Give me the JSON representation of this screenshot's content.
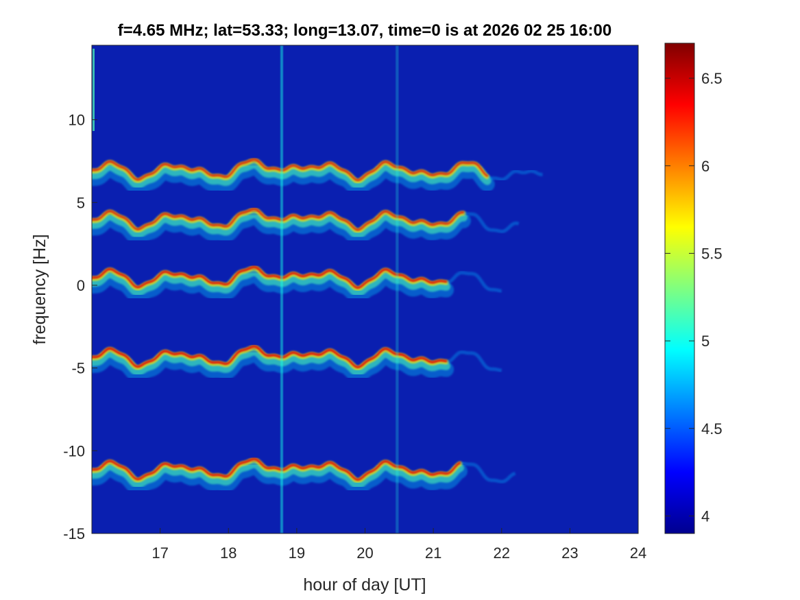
{
  "chart_data": {
    "type": "heatmap",
    "title": "f=4.65 MHz;  lat=53.33; long=13.07, time=0 is at 2026 02 25 16:00",
    "xlabel": "hour of day [UT]",
    "ylabel": "frequency [Hz]",
    "xlim": [
      16,
      24
    ],
    "ylim": [
      -15,
      14.5
    ],
    "x_ticks": [
      17,
      18,
      19,
      20,
      21,
      22,
      23,
      24
    ],
    "x_tick_labels": [
      "17",
      "18",
      "19",
      "20",
      "21",
      "22",
      "23",
      "24"
    ],
    "y_ticks": [
      -15,
      -10,
      -5,
      0,
      5,
      10
    ],
    "y_tick_labels": [
      "-15",
      "-10",
      "-5",
      "0",
      "5",
      "10"
    ],
    "colorbar": {
      "range": [
        3.9,
        6.7
      ],
      "ticks": [
        4,
        4.5,
        5,
        5.5,
        6,
        6.5
      ],
      "tick_labels": [
        "4",
        "4.5",
        "5",
        "5.5",
        "6",
        "6.5"
      ],
      "colormap": "jet"
    },
    "background_color": "#0a1fb0",
    "traces": [
      {
        "offset_hz": 6.9,
        "end_hour": 21.8,
        "strength": 0.8
      },
      {
        "offset_hz": 3.9,
        "end_hour": 21.45,
        "strength": 0.8
      },
      {
        "offset_hz": 0.4,
        "end_hour": 21.2,
        "strength": 0.95
      },
      {
        "offset_hz": -4.4,
        "end_hour": 21.2,
        "strength": 1.0
      },
      {
        "offset_hz": -11.2,
        "end_hour": 21.4,
        "strength": 0.95
      }
    ],
    "vertical_stripes": [
      {
        "hour": 18.78,
        "strength": 0.55
      },
      {
        "hour": 20.47,
        "strength": 0.3
      }
    ]
  }
}
